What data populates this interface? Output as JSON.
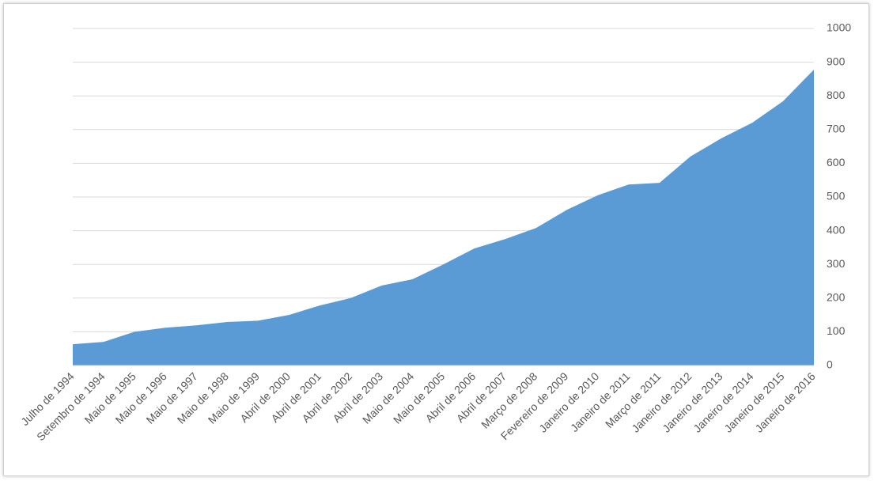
{
  "chart_data": {
    "type": "area",
    "categories": [
      "Julho de 1994",
      "Setembro de 1994",
      "Maio de 1995",
      "Maio de 1996",
      "Maio de 1997",
      "Maio de 1998",
      "Maio de 1999",
      "Abril de 2000",
      "Abril de 2001",
      "Abril de 2002",
      "Abril de 2003",
      "Maio de 2004",
      "Maio de 2005",
      "Abril de 2006",
      "Abril de 2007",
      "Março de 2008",
      "Fevereiro de 2009",
      "Janeiro de 2010",
      "Janeiro de 2011",
      "Março de 2011",
      "Janeiro de 2012",
      "Janeiro de 2013",
      "Janeiro de 2014",
      "Janeiro de 2015",
      "Janeiro de 2016"
    ],
    "values": [
      63,
      70,
      100,
      112,
      119,
      129,
      133,
      150,
      178,
      200,
      237,
      256,
      300,
      347,
      375,
      408,
      462,
      505,
      537,
      542,
      620,
      674,
      720,
      784,
      878
    ],
    "color": "#5b9bd5",
    "ylim": [
      0,
      1000
    ],
    "yticks": [
      0,
      100,
      200,
      300,
      400,
      500,
      600,
      700,
      800,
      900,
      1000
    ],
    "grid": true,
    "y_axis_side": "right"
  }
}
